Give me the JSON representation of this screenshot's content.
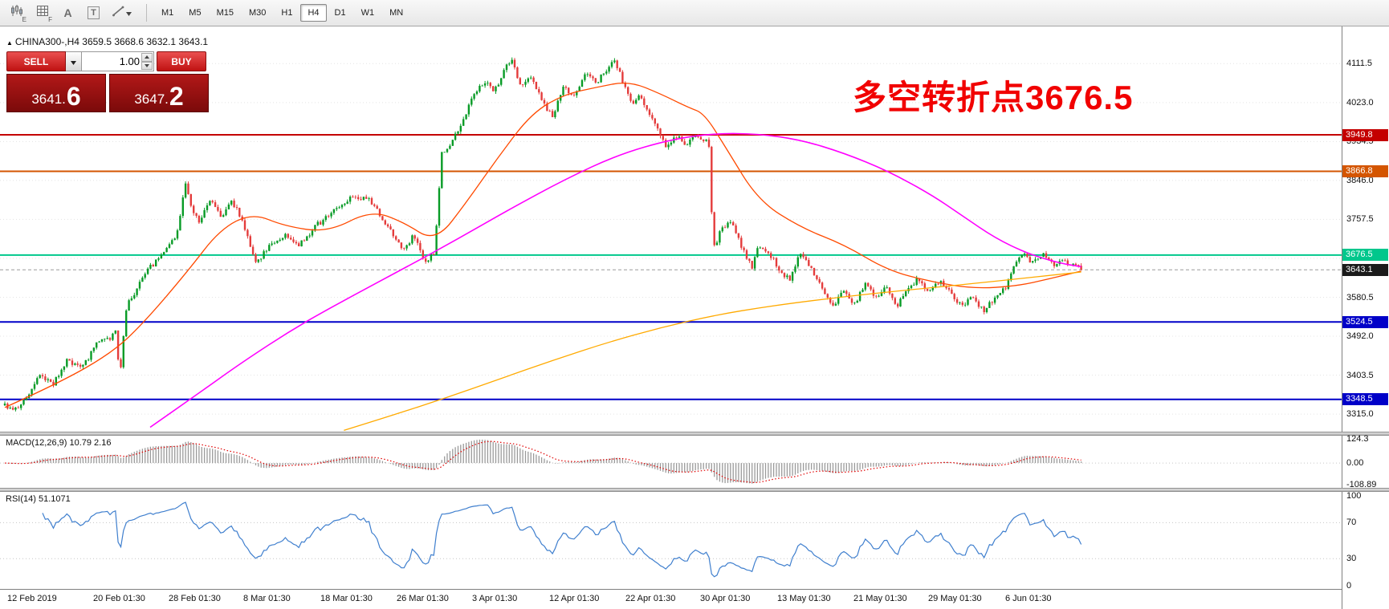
{
  "toolbar": {
    "tools": [
      {
        "id": "chart-style",
        "badge": "E"
      },
      {
        "id": "grid",
        "badge": "F"
      },
      {
        "id": "text",
        "glyph": "A"
      },
      {
        "id": "textbox",
        "glyph": "T"
      },
      {
        "id": "draw",
        "has_dropdown": true
      }
    ],
    "timeframes": [
      "M1",
      "M5",
      "M15",
      "M30",
      "H1",
      "H4",
      "D1",
      "W1",
      "MN"
    ],
    "active_timeframe": "H4"
  },
  "chart": {
    "symbol_info": "CHINA300-,H4  3659.5 3668.6 3632.1 3643.1",
    "annotation": {
      "text": "多空转折点3676.5",
      "color": "#f10000"
    },
    "trade_panel": {
      "sell_label": "SELL",
      "buy_label": "BUY",
      "volume": "1.00",
      "bid": {
        "main": "3641.",
        "big": "6"
      },
      "ask": {
        "main": "3647.",
        "big": "2"
      }
    }
  },
  "macd_panel": {
    "label": "MACD(12,26,9) 10.79 2.16"
  },
  "rsi_panel": {
    "label": "RSI(14) 51.1071"
  },
  "chart_data": {
    "type": "candlestick",
    "symbol": "CHINA300-",
    "timeframe": "H4",
    "ohlc_last": {
      "open": 3659.5,
      "high": 3668.6,
      "low": 3632.1,
      "close": 3643.1
    },
    "price_axis_ticks": [
      4111.5,
      4023.0,
      3934.5,
      3846.0,
      3757.5,
      3669.0,
      3580.5,
      3492.0,
      3403.5,
      3315.0
    ],
    "visible_price_range": [
      3275,
      4196
    ],
    "candle_count": 400,
    "wiggle": 6,
    "candle_colors": {
      "up": "#089b26",
      "down": "#e43c3c"
    },
    "close_path": [
      [
        0.0,
        3335
      ],
      [
        0.008,
        3318
      ],
      [
        0.02,
        3352
      ],
      [
        0.032,
        3400
      ],
      [
        0.045,
        3382
      ],
      [
        0.058,
        3438
      ],
      [
        0.072,
        3420
      ],
      [
        0.085,
        3475
      ],
      [
        0.098,
        3485
      ],
      [
        0.103,
        3505
      ],
      [
        0.107,
        3398
      ],
      [
        0.113,
        3560
      ],
      [
        0.122,
        3598
      ],
      [
        0.135,
        3648
      ],
      [
        0.15,
        3688
      ],
      [
        0.16,
        3728
      ],
      [
        0.168,
        3845
      ],
      [
        0.173,
        3788
      ],
      [
        0.181,
        3752
      ],
      [
        0.191,
        3800
      ],
      [
        0.201,
        3762
      ],
      [
        0.21,
        3806
      ],
      [
        0.221,
        3752
      ],
      [
        0.234,
        3655
      ],
      [
        0.246,
        3700
      ],
      [
        0.26,
        3722
      ],
      [
        0.274,
        3700
      ],
      [
        0.29,
        3745
      ],
      [
        0.309,
        3782
      ],
      [
        0.324,
        3812
      ],
      [
        0.34,
        3800
      ],
      [
        0.355,
        3742
      ],
      [
        0.369,
        3688
      ],
      [
        0.38,
        3720
      ],
      [
        0.39,
        3658
      ],
      [
        0.399,
        3682
      ],
      [
        0.406,
        3905
      ],
      [
        0.415,
        3932
      ],
      [
        0.425,
        3978
      ],
      [
        0.436,
        4042
      ],
      [
        0.446,
        4072
      ],
      [
        0.455,
        4048
      ],
      [
        0.464,
        4098
      ],
      [
        0.47,
        4122
      ],
      [
        0.48,
        4058
      ],
      [
        0.49,
        4082
      ],
      [
        0.5,
        4022
      ],
      [
        0.509,
        3988
      ],
      [
        0.519,
        4058
      ],
      [
        0.529,
        4040
      ],
      [
        0.539,
        4088
      ],
      [
        0.549,
        4068
      ],
      [
        0.559,
        4098
      ],
      [
        0.567,
        4120
      ],
      [
        0.575,
        4062
      ],
      [
        0.582,
        4018
      ],
      [
        0.59,
        4042
      ],
      [
        0.6,
        3992
      ],
      [
        0.609,
        3952
      ],
      [
        0.615,
        3918
      ],
      [
        0.624,
        3948
      ],
      [
        0.634,
        3928
      ],
      [
        0.644,
        3950
      ],
      [
        0.654,
        3928
      ],
      [
        0.658,
        3688
      ],
      [
        0.665,
        3730
      ],
      [
        0.674,
        3752
      ],
      [
        0.684,
        3700
      ],
      [
        0.694,
        3648
      ],
      [
        0.7,
        3698
      ],
      [
        0.71,
        3678
      ],
      [
        0.719,
        3648
      ],
      [
        0.729,
        3618
      ],
      [
        0.739,
        3682
      ],
      [
        0.749,
        3648
      ],
      [
        0.759,
        3598
      ],
      [
        0.769,
        3558
      ],
      [
        0.779,
        3592
      ],
      [
        0.789,
        3560
      ],
      [
        0.799,
        3612
      ],
      [
        0.809,
        3578
      ],
      [
        0.819,
        3602
      ],
      [
        0.829,
        3558
      ],
      [
        0.839,
        3602
      ],
      [
        0.849,
        3622
      ],
      [
        0.859,
        3592
      ],
      [
        0.869,
        3618
      ],
      [
        0.879,
        3592
      ],
      [
        0.889,
        3558
      ],
      [
        0.899,
        3582
      ],
      [
        0.909,
        3548
      ],
      [
        0.919,
        3578
      ],
      [
        0.929,
        3600
      ],
      [
        0.944,
        3682
      ],
      [
        0.954,
        3658
      ],
      [
        0.964,
        3678
      ],
      [
        0.974,
        3652
      ],
      [
        0.984,
        3662
      ],
      [
        0.992,
        3655
      ],
      [
        1.0,
        3643.1
      ]
    ],
    "moving_averages": [
      {
        "name": "fast-ma",
        "color": "#ff4a00",
        "path": [
          [
            0.0,
            3330
          ],
          [
            0.05,
            3385
          ],
          [
            0.1,
            3455
          ],
          [
            0.13,
            3525
          ],
          [
            0.17,
            3640
          ],
          [
            0.2,
            3735
          ],
          [
            0.23,
            3772
          ],
          [
            0.26,
            3742
          ],
          [
            0.3,
            3728
          ],
          [
            0.34,
            3778
          ],
          [
            0.37,
            3752
          ],
          [
            0.4,
            3705
          ],
          [
            0.43,
            3800
          ],
          [
            0.46,
            3905
          ],
          [
            0.49,
            4000
          ],
          [
            0.52,
            4042
          ],
          [
            0.55,
            4058
          ],
          [
            0.58,
            4072
          ],
          [
            0.61,
            4042
          ],
          [
            0.635,
            4012
          ],
          [
            0.65,
            3998
          ],
          [
            0.67,
            3920
          ],
          [
            0.7,
            3800
          ],
          [
            0.74,
            3738
          ],
          [
            0.78,
            3700
          ],
          [
            0.82,
            3642
          ],
          [
            0.86,
            3616
          ],
          [
            0.9,
            3600
          ],
          [
            0.94,
            3606
          ],
          [
            0.97,
            3622
          ],
          [
            1.0,
            3640
          ]
        ]
      },
      {
        "name": "mid-ma",
        "color": "#ff00ff",
        "path": [
          [
            0.135,
            3285
          ],
          [
            0.18,
            3362
          ],
          [
            0.22,
            3432
          ],
          [
            0.27,
            3512
          ],
          [
            0.32,
            3580
          ],
          [
            0.37,
            3645
          ],
          [
            0.42,
            3712
          ],
          [
            0.47,
            3782
          ],
          [
            0.52,
            3848
          ],
          [
            0.57,
            3905
          ],
          [
            0.62,
            3940
          ],
          [
            0.66,
            3953
          ],
          [
            0.7,
            3952
          ],
          [
            0.74,
            3938
          ],
          [
            0.78,
            3908
          ],
          [
            0.82,
            3868
          ],
          [
            0.86,
            3815
          ],
          [
            0.89,
            3765
          ],
          [
            0.92,
            3715
          ],
          [
            0.95,
            3680
          ],
          [
            0.98,
            3658
          ],
          [
            1.0,
            3650
          ]
        ]
      },
      {
        "name": "slow-ma",
        "color": "#ffaa00",
        "path": [
          [
            0.315,
            3278
          ],
          [
            0.36,
            3312
          ],
          [
            0.41,
            3352
          ],
          [
            0.46,
            3395
          ],
          [
            0.51,
            3438
          ],
          [
            0.56,
            3478
          ],
          [
            0.61,
            3512
          ],
          [
            0.66,
            3540
          ],
          [
            0.71,
            3560
          ],
          [
            0.76,
            3576
          ],
          [
            0.81,
            3590
          ],
          [
            0.86,
            3602
          ],
          [
            0.9,
            3612
          ],
          [
            0.94,
            3622
          ],
          [
            0.97,
            3630
          ],
          [
            1.0,
            3638
          ]
        ]
      }
    ],
    "levels": [
      {
        "price": 3949.8,
        "label": "3949.8",
        "color": "#c40000",
        "style": "solid"
      },
      {
        "price": 3866.8,
        "label": "3866.8",
        "color": "#d45500",
        "style": "solid"
      },
      {
        "price": 3676.5,
        "label": "3676.5",
        "color": "#00c78c",
        "style": "solid"
      },
      {
        "price": 3643.1,
        "label": "3643.1",
        "color": "#1b1b1b",
        "line_color": "#9a9a9a",
        "style": "dashed",
        "current": true
      },
      {
        "price": 3524.5,
        "label": "3524.5",
        "color": "#0000c8",
        "style": "solid"
      },
      {
        "price": 3348.5,
        "label": "3348.5",
        "color": "#0000c8",
        "style": "solid"
      }
    ],
    "macd": {
      "label": "MACD(12,26,9)",
      "values": [
        10.79,
        2.16
      ],
      "axis_ticks": [
        {
          "v": 124.3,
          "label": "124.3"
        },
        {
          "v": 0,
          "label": "0.00"
        },
        {
          "v": -108.89,
          "label": "-108.89"
        }
      ],
      "hist_color": "#9a9a9a",
      "signal_color": "#e00000"
    },
    "rsi": {
      "label": "RSI(14)",
      "value": 51.1071,
      "axis_ticks": [
        {
          "v": 100,
          "label": "100"
        },
        {
          "v": 70,
          "label": "70"
        },
        {
          "v": 30,
          "label": "30"
        },
        {
          "v": 0,
          "label": "0"
        }
      ],
      "levels": [
        70,
        30
      ],
      "color": "#3f7fce"
    },
    "time_labels": [
      "12 Feb 2019",
      "20 Feb 01:30",
      "28 Feb 01:30",
      "8 Mar 01:30",
      "18 Mar 01:30",
      "26 Mar 01:30",
      "3 Apr 01:30",
      "12 Apr 01:30",
      "22 Apr 01:30",
      "30 Apr 01:30",
      "13 May 01:30",
      "21 May 01:30",
      "29 May 01:30",
      "6 Jun 01:30"
    ]
  }
}
